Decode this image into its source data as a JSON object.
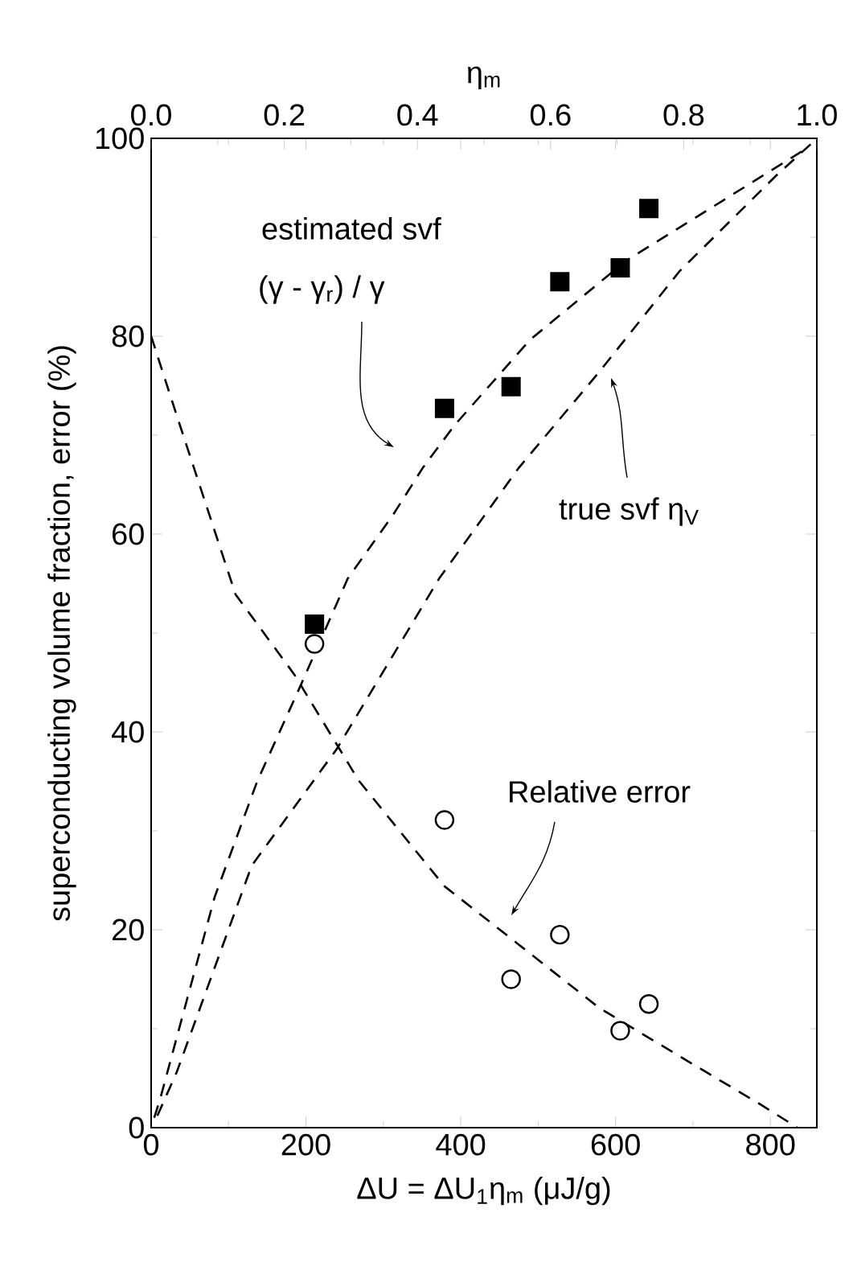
{
  "chart_data": {
    "type": "scatter",
    "xlabel": "ΔU = ΔU$_{1}$η$_{m}$ (μJ/g)",
    "ylabel": "superconducting volume fraction, error (%)",
    "x2label": "η$_{m}$",
    "xlim": [
      0,
      860
    ],
    "xticks": [
      0,
      200,
      400,
      600,
      800
    ],
    "ylim": [
      0,
      100
    ],
    "yticks": [
      0,
      20,
      40,
      60,
      80,
      100
    ],
    "x2lim": [
      0,
      1
    ],
    "x2ticks": [
      {
        "value": 0,
        "label": "0.0"
      },
      {
        "value": 0.2,
        "label": "0.2"
      },
      {
        "value": 0.4,
        "label": "0.4"
      },
      {
        "value": 0.6,
        "label": "0.6"
      },
      {
        "value": 0.8,
        "label": "0.8"
      },
      {
        "value": 1,
        "label": "1.0"
      }
    ],
    "series": [
      {
        "type": "line",
        "color": "#000000",
        "line_style": "dashed",
        "marker": "none",
        "x": [
          4,
          12,
          82,
          137,
          192,
          254,
          313,
          351,
          392,
          489,
          613,
          724,
          845
        ],
        "values": [
          1,
          3,
          23.3,
          35,
          44.5,
          55.5,
          62,
          66.7,
          71,
          79.6,
          87.6,
          93,
          98.9
        ]
      },
      {
        "type": "line",
        "color": "#000000",
        "line_style": "dashed",
        "marker": "none",
        "x": [
          8,
          33,
          130,
          240,
          372,
          475,
          579,
          683,
          807,
          852
        ],
        "values": [
          1.2,
          5.6,
          26.5,
          38.3,
          55.5,
          66.7,
          76.4,
          86.6,
          96.2,
          99.4
        ]
      },
      {
        "type": "line",
        "color": "#000000",
        "line_style": "dashed",
        "marker": "none",
        "x": [
          0,
          33,
          109,
          185,
          268,
          379,
          475,
          579,
          683,
          786,
          835
        ],
        "values": [
          80,
          72,
          53.9,
          45.8,
          35.1,
          24.4,
          18.5,
          12.1,
          7.2,
          2.4,
          0
        ]
      },
      {
        "color": "#000000",
        "marker": "square",
        "x": [
          211,
          379,
          465,
          528,
          606,
          643
        ],
        "values": [
          50.9,
          72.7,
          74.9,
          85.5,
          86.9,
          92.9
        ]
      },
      {
        "color": "#000000",
        "marker": "circle",
        "x": [
          211,
          379,
          465,
          528,
          606,
          643
        ],
        "values": [
          48.9,
          31.1,
          15.0,
          19.5,
          9.8,
          12.5
        ]
      }
    ],
    "annotations": [
      "estimated svf",
      "(γ - γ$_{r}$) / γ",
      "true svf η$_{V}$",
      "Relative error"
    ],
    "grid": false
  }
}
